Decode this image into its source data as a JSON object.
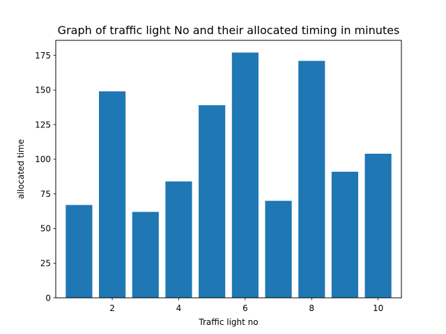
{
  "chart_data": {
    "type": "bar",
    "title": "Graph of traffic light No and their allocated timing in minutes",
    "xlabel": "Traffic light no",
    "ylabel": "allocated time",
    "x": [
      1,
      2,
      3,
      4,
      5,
      6,
      7,
      8,
      9,
      10
    ],
    "values": [
      67,
      149,
      62,
      84,
      139,
      177,
      70,
      171,
      91,
      104
    ],
    "xlim": [
      0.3,
      10.7
    ],
    "ylim": [
      0,
      185.8
    ],
    "xticks": [
      2,
      4,
      6,
      8,
      10
    ],
    "yticks": [
      0,
      25,
      50,
      75,
      100,
      125,
      150,
      175
    ],
    "bar_color": "#1f77b4",
    "grid": false,
    "legend": "none"
  }
}
